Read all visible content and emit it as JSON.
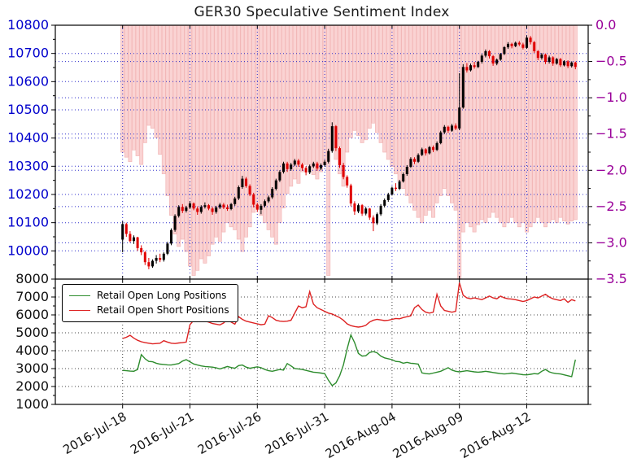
{
  "title": "GER30 Speculative Sentiment Index",
  "legend": {
    "long_label": "Retail Open Long Positions",
    "short_label": "Retail Open Short Positions"
  },
  "colors": {
    "price_axis_labels": "#0000cc",
    "ssi_axis_labels": "#990099",
    "ssi_bar_fill": "#fad3d3",
    "ssi_bar_edge": "#f2b6b6",
    "candle_up": "#000000",
    "candle_down": "#e00000",
    "grid_top": "#2f2fcc",
    "grid_bottom": "#444444",
    "long_line": "#2d8c2d",
    "short_line": "#dd2222",
    "axis_spine": "#000000",
    "x_labels": "#111111",
    "bottom_axis_labels": "#111111"
  },
  "chart_data": [
    {
      "type": "candlestick+bar",
      "panel": "price-and-ssi",
      "title": "GER30 Speculative Sentiment Index",
      "grid": true,
      "left_axis": {
        "ticks": [
          10800,
          10700,
          10600,
          10500,
          10400,
          10300,
          10200,
          10100,
          10000
        ],
        "range": [
          9900,
          10800
        ],
        "minor_step": 50
      },
      "right_axis": {
        "ticks": [
          0.0,
          -0.5,
          -1.0,
          -1.5,
          -2.0,
          -2.5,
          -3.0,
          -3.5
        ],
        "range": [
          -3.5,
          0.0
        ],
        "minor_step": 0.25
      },
      "x_tick_labels": [
        "2016-Jul-18",
        "2016-Jul-21",
        "2016-Jul-26",
        "2016-Jul-31",
        "2016-Aug-04",
        "2016-Aug-09",
        "2016-Aug-12"
      ],
      "x_tick_indices": [
        0,
        18,
        36,
        54,
        72,
        90,
        108
      ],
      "candles_ohlc": [
        [
          10040,
          10105,
          9995,
          10095
        ],
        [
          10095,
          10100,
          10050,
          10060
        ],
        [
          10060,
          10070,
          10030,
          10035
        ],
        [
          10035,
          10055,
          10025,
          10048
        ],
        [
          10048,
          10050,
          10000,
          10010
        ],
        [
          10010,
          10020,
          9985,
          9995
        ],
        [
          9995,
          10000,
          9950,
          9960
        ],
        [
          9960,
          9975,
          9935,
          9945
        ],
        [
          9945,
          9970,
          9940,
          9965
        ],
        [
          9965,
          9985,
          9955,
          9975
        ],
        [
          9975,
          9990,
          9960,
          9968
        ],
        [
          9968,
          9995,
          9962,
          9990
        ],
        [
          9990,
          10032,
          9985,
          10026
        ],
        [
          10026,
          10080,
          10020,
          10074
        ],
        [
          10074,
          10130,
          10068,
          10124
        ],
        [
          10124,
          10162,
          10118,
          10156
        ],
        [
          10156,
          10166,
          10134,
          10142
        ],
        [
          10142,
          10160,
          10136,
          10154
        ],
        [
          10154,
          10176,
          10148,
          10168
        ],
        [
          10168,
          10172,
          10144,
          10150
        ],
        [
          10150,
          10158,
          10128,
          10138
        ],
        [
          10138,
          10162,
          10132,
          10156
        ],
        [
          10156,
          10172,
          10150,
          10162
        ],
        [
          10162,
          10166,
          10144,
          10150
        ],
        [
          10150,
          10156,
          10128,
          10138
        ],
        [
          10138,
          10160,
          10132,
          10154
        ],
        [
          10154,
          10170,
          10148,
          10164
        ],
        [
          10164,
          10170,
          10148,
          10154
        ],
        [
          10154,
          10164,
          10142,
          10148
        ],
        [
          10148,
          10170,
          10144,
          10166
        ],
        [
          10166,
          10192,
          10160,
          10186
        ],
        [
          10186,
          10232,
          10180,
          10226
        ],
        [
          10226,
          10266,
          10220,
          10256
        ],
        [
          10256,
          10262,
          10224,
          10230
        ],
        [
          10230,
          10236,
          10194,
          10200
        ],
        [
          10200,
          10206,
          10154,
          10164
        ],
        [
          10164,
          10170,
          10138,
          10146
        ],
        [
          10146,
          10166,
          10130,
          10160
        ],
        [
          10160,
          10182,
          10154,
          10176
        ],
        [
          10176,
          10196,
          10170,
          10190
        ],
        [
          10190,
          10226,
          10184,
          10220
        ],
        [
          10220,
          10256,
          10214,
          10250
        ],
        [
          10250,
          10286,
          10244,
          10280
        ],
        [
          10280,
          10316,
          10274,
          10310
        ],
        [
          10310,
          10316,
          10280,
          10290
        ],
        [
          10290,
          10312,
          10284,
          10306
        ],
        [
          10306,
          10326,
          10300,
          10320
        ],
        [
          10320,
          10326,
          10298,
          10306
        ],
        [
          10306,
          10312,
          10284,
          10294
        ],
        [
          10294,
          10300,
          10268,
          10278
        ],
        [
          10278,
          10306,
          10272,
          10300
        ],
        [
          10300,
          10316,
          10294,
          10310
        ],
        [
          10310,
          10316,
          10284,
          10292
        ],
        [
          10292,
          10310,
          10286,
          10304
        ],
        [
          10304,
          10322,
          10298,
          10316
        ],
        [
          10316,
          10362,
          10310,
          10354
        ],
        [
          10354,
          10456,
          10348,
          10442
        ],
        [
          10442,
          10446,
          10354,
          10364
        ],
        [
          10364,
          10370,
          10294,
          10304
        ],
        [
          10304,
          10312,
          10254,
          10262
        ],
        [
          10262,
          10268,
          10224,
          10232
        ],
        [
          10232,
          10238,
          10158,
          10168
        ],
        [
          10168,
          10176,
          10128,
          10140
        ],
        [
          10140,
          10168,
          10134,
          10162
        ],
        [
          10162,
          10166,
          10124,
          10132
        ],
        [
          10132,
          10156,
          10126,
          10150
        ],
        [
          10150,
          10152,
          10110,
          10118
        ],
        [
          10118,
          10126,
          10070,
          10098
        ],
        [
          10098,
          10136,
          10092,
          10130
        ],
        [
          10130,
          10166,
          10124,
          10160
        ],
        [
          10160,
          10186,
          10154,
          10180
        ],
        [
          10180,
          10206,
          10174,
          10200
        ],
        [
          10200,
          10228,
          10196,
          10224
        ],
        [
          10224,
          10240,
          10212,
          10220
        ],
        [
          10220,
          10252,
          10216,
          10246
        ],
        [
          10246,
          10278,
          10242,
          10272
        ],
        [
          10272,
          10304,
          10266,
          10298
        ],
        [
          10298,
          10332,
          10294,
          10326
        ],
        [
          10326,
          10332,
          10308,
          10316
        ],
        [
          10316,
          10346,
          10312,
          10340
        ],
        [
          10340,
          10366,
          10336,
          10360
        ],
        [
          10360,
          10364,
          10338,
          10346
        ],
        [
          10346,
          10372,
          10342,
          10368
        ],
        [
          10368,
          10374,
          10350,
          10358
        ],
        [
          10358,
          10388,
          10354,
          10382
        ],
        [
          10382,
          10426,
          10378,
          10420
        ],
        [
          10420,
          10446,
          10414,
          10440
        ],
        [
          10440,
          10444,
          10418,
          10426
        ],
        [
          10426,
          10450,
          10422,
          10444
        ],
        [
          10444,
          10452,
          10428,
          10434
        ],
        [
          10434,
          10630,
          10428,
          10508
        ],
        [
          10508,
          10662,
          10504,
          10652
        ],
        [
          10652,
          10666,
          10632,
          10640
        ],
        [
          10640,
          10664,
          10636,
          10658
        ],
        [
          10658,
          10670,
          10646,
          10652
        ],
        [
          10652,
          10674,
          10648,
          10670
        ],
        [
          10670,
          10698,
          10664,
          10692
        ],
        [
          10692,
          10714,
          10686,
          10708
        ],
        [
          10708,
          10712,
          10682,
          10690
        ],
        [
          10690,
          10694,
          10656,
          10664
        ],
        [
          10664,
          10682,
          10658,
          10678
        ],
        [
          10678,
          10702,
          10674,
          10698
        ],
        [
          10698,
          10726,
          10694,
          10722
        ],
        [
          10722,
          10740,
          10716,
          10734
        ],
        [
          10734,
          10738,
          10718,
          10726
        ],
        [
          10726,
          10742,
          10722,
          10738
        ],
        [
          10738,
          10744,
          10726,
          10732
        ],
        [
          10732,
          10738,
          10714,
          10720
        ],
        [
          10720,
          10764,
          10716,
          10756
        ],
        [
          10756,
          10762,
          10732,
          10740
        ],
        [
          10740,
          10744,
          10702,
          10708
        ],
        [
          10708,
          10712,
          10676,
          10684
        ],
        [
          10684,
          10702,
          10678,
          10696
        ],
        [
          10696,
          10700,
          10662,
          10670
        ],
        [
          10670,
          10692,
          10664,
          10686
        ],
        [
          10686,
          10690,
          10656,
          10664
        ],
        [
          10664,
          10684,
          10660,
          10680
        ],
        [
          10680,
          10684,
          10652,
          10658
        ],
        [
          10658,
          10676,
          10654,
          10672
        ],
        [
          10672,
          10676,
          10648,
          10655
        ],
        [
          10655,
          10672,
          10650,
          10668
        ],
        [
          10668,
          10671,
          10644,
          10652
        ]
      ],
      "ssi_values": [
        -1.75,
        -1.82,
        -1.88,
        -1.72,
        -1.8,
        -1.92,
        -1.62,
        -1.38,
        -1.42,
        -1.55,
        -1.78,
        -2.05,
        -2.35,
        -2.62,
        -2.88,
        -3.05,
        -2.95,
        -3.12,
        -3.32,
        -3.45,
        -3.38,
        -3.22,
        -3.28,
        -3.18,
        -3.02,
        -2.92,
        -2.98,
        -2.85,
        -2.72,
        -2.78,
        -2.82,
        -2.95,
        -3.12,
        -2.92,
        -2.78,
        -2.58,
        -2.52,
        -2.62,
        -2.72,
        -2.82,
        -2.92,
        -3.02,
        -2.72,
        -2.52,
        -2.32,
        -2.22,
        -2.12,
        -2.18,
        -2.02,
        -1.92,
        -1.96,
        -2.06,
        -2.12,
        -2.02,
        -1.92,
        -3.45,
        -1.72,
        -1.85,
        -2.05,
        -2.22,
        -1.75,
        -1.55,
        -1.45,
        -1.52,
        -1.62,
        -1.58,
        -1.42,
        -1.35,
        -1.48,
        -1.62,
        -1.75,
        -1.85,
        -1.95,
        -2.05,
        -2.15,
        -2.25,
        -2.35,
        -2.45,
        -2.55,
        -2.65,
        -2.72,
        -2.62,
        -2.55,
        -2.65,
        -2.45,
        -2.35,
        -2.25,
        -2.35,
        -2.45,
        -2.55,
        -3.5,
        -2.85,
        -2.72,
        -2.78,
        -2.85,
        -2.75,
        -2.68,
        -2.72,
        -2.65,
        -2.58,
        -2.65,
        -2.72,
        -2.78,
        -2.72,
        -2.65,
        -2.72,
        -2.78,
        -2.72,
        -2.85,
        -2.78,
        -2.72,
        -2.65,
        -2.72,
        -2.78,
        -2.72,
        -2.68,
        -2.72,
        -2.65,
        -2.7,
        -2.74,
        -2.7,
        -2.68
      ]
    },
    {
      "type": "line",
      "panel": "retail-positions",
      "grid": true,
      "left_axis": {
        "ticks": [
          8000,
          7000,
          6000,
          5000,
          4000,
          3000,
          2000,
          1000
        ],
        "range": [
          1000,
          8000
        ],
        "minor_step": 500
      },
      "legend_position": "upper-left",
      "series": [
        {
          "name": "Retail Open Long Positions",
          "color": "#2d8c2d",
          "values": [
            2900,
            2880,
            2860,
            2850,
            2950,
            3780,
            3550,
            3400,
            3380,
            3300,
            3250,
            3230,
            3210,
            3200,
            3240,
            3280,
            3420,
            3500,
            3380,
            3260,
            3200,
            3150,
            3120,
            3100,
            3080,
            3040,
            2980,
            3050,
            3120,
            3060,
            3020,
            3170,
            3200,
            3080,
            3020,
            3060,
            3100,
            3050,
            2950,
            2880,
            2850,
            2900,
            2950,
            2920,
            3280,
            3150,
            3000,
            2980,
            2950,
            2900,
            2850,
            2800,
            2780,
            2750,
            2720,
            2350,
            2050,
            2200,
            2600,
            3200,
            4100,
            4880,
            4450,
            3850,
            3700,
            3720,
            3900,
            3950,
            3880,
            3700,
            3600,
            3550,
            3500,
            3400,
            3380,
            3300,
            3350,
            3300,
            3280,
            3250,
            2760,
            2720,
            2700,
            2750,
            2800,
            2850,
            2950,
            3050,
            2920,
            2850,
            2820,
            2850,
            2880,
            2850,
            2820,
            2800,
            2820,
            2850,
            2820,
            2780,
            2750,
            2720,
            2700,
            2720,
            2750,
            2720,
            2690,
            2660,
            2650,
            2680,
            2720,
            2700,
            2850,
            2950,
            2820,
            2750,
            2720,
            2700,
            2650,
            2600,
            2550,
            3500
          ]
        },
        {
          "name": "Retail Open Short Positions",
          "color": "#dd2222",
          "values": [
            4680,
            4750,
            4860,
            4700,
            4580,
            4500,
            4450,
            4420,
            4380,
            4400,
            4420,
            4560,
            4480,
            4420,
            4400,
            4430,
            4450,
            4480,
            5450,
            5700,
            5850,
            5750,
            5650,
            5600,
            5520,
            5480,
            5440,
            5550,
            5750,
            5600,
            5480,
            5900,
            5750,
            5650,
            5600,
            5550,
            5500,
            5450,
            5480,
            5950,
            5850,
            5700,
            5650,
            5630,
            5650,
            5700,
            6100,
            6500,
            6400,
            6450,
            7300,
            6600,
            6400,
            6300,
            6200,
            6100,
            6050,
            5950,
            5850,
            5700,
            5500,
            5400,
            5350,
            5320,
            5350,
            5420,
            5600,
            5700,
            5750,
            5720,
            5680,
            5700,
            5750,
            5800,
            5780,
            5850,
            5900,
            5950,
            6400,
            6550,
            6300,
            6150,
            6100,
            6150,
            7150,
            6500,
            6250,
            6200,
            6150,
            6200,
            7800,
            7100,
            6950,
            6900,
            6950,
            6900,
            6850,
            6950,
            7050,
            6950,
            6900,
            7050,
            6950,
            6900,
            6880,
            6850,
            6800,
            6750,
            6800,
            6900,
            7000,
            6950,
            7050,
            7150,
            7000,
            6900,
            6850,
            6800,
            6900,
            6700,
            6850,
            6780
          ]
        }
      ]
    }
  ]
}
